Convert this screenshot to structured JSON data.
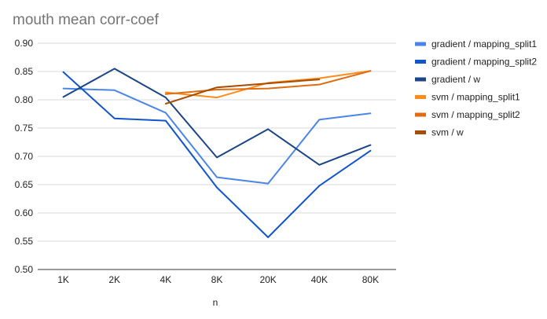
{
  "chart_data": {
    "type": "line",
    "title": "mouth mean corr-coef",
    "xlabel": "n",
    "ylabel": "",
    "categories": [
      "1K",
      "2K",
      "4K",
      "8K",
      "20K",
      "40K",
      "80K"
    ],
    "ylim": [
      0.5,
      0.9
    ],
    "yticks": [
      "0.50",
      "0.55",
      "0.60",
      "0.65",
      "0.70",
      "0.75",
      "0.80",
      "0.85",
      "0.90"
    ],
    "grid": true,
    "legend": "right",
    "series": [
      {
        "name": "gradient / mapping_split1",
        "color": "#4a86e8",
        "values": [
          0.82,
          0.817,
          0.777,
          0.663,
          0.652,
          0.765,
          0.776
        ]
      },
      {
        "name": "gradient / mapping_split2",
        "color": "#1155cc",
        "values": [
          0.849,
          0.767,
          0.763,
          0.645,
          0.557,
          0.648,
          0.71
        ]
      },
      {
        "name": "gradient / w",
        "color": "#1c4587",
        "values": [
          0.805,
          0.855,
          0.804,
          0.698,
          0.748,
          0.685,
          0.72
        ]
      },
      {
        "name": "svm / mapping_split1",
        "color": "#ff8c1a",
        "values": [
          null,
          null,
          0.813,
          0.804,
          0.83,
          0.838,
          0.851
        ]
      },
      {
        "name": "svm / mapping_split2",
        "color": "#e06c10",
        "values": [
          null,
          null,
          0.81,
          0.818,
          0.82,
          0.827,
          0.851
        ]
      },
      {
        "name": "svm / w",
        "color": "#a64d05",
        "values": [
          null,
          null,
          0.793,
          0.822,
          0.829,
          0.836,
          null
        ]
      }
    ]
  }
}
